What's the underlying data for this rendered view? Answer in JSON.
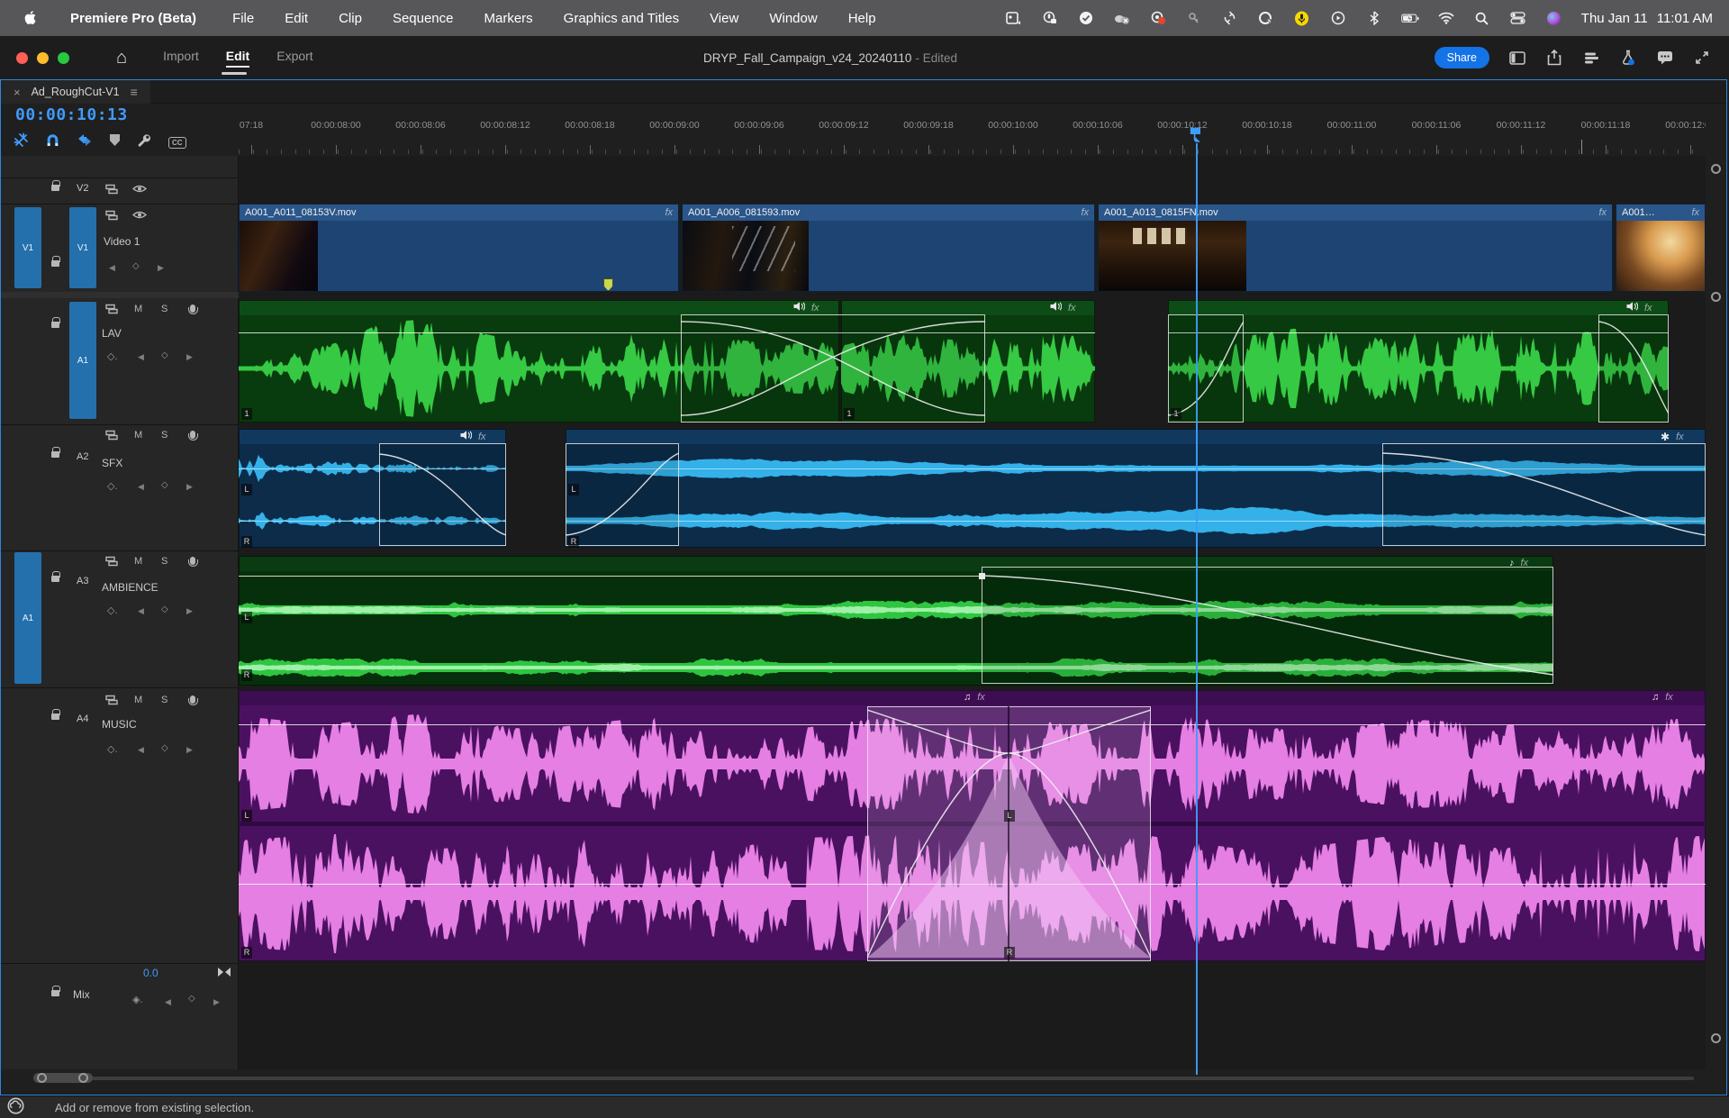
{
  "colors": {
    "accent_blue": "#1473e6",
    "playhead_blue": "#3e9df5",
    "timecode_blue": "#3f9bfa",
    "video_clip": "#1d4473",
    "lav_wave": "#36c944",
    "sfx_wave": "#34b1e8",
    "ambience_wave": "#2fc541",
    "ambience_core": "#9ff0a8",
    "music_wave": "#e57fe3",
    "traffic_red": "#ff5f57",
    "traffic_yellow": "#febc2e",
    "traffic_green": "#28c840"
  },
  "icons": {
    "close": "×",
    "panel_menu": "≡",
    "home": "⌂",
    "music_note": "♫",
    "note": "♪",
    "kf_diamond": "◇",
    "kf_prev": "◀",
    "kf_next": "▶",
    "render_star": "✱",
    "cc_badge": "CC"
  },
  "menubar": {
    "app_name": "Premiere Pro (Beta)",
    "items": [
      "File",
      "Edit",
      "Clip",
      "Sequence",
      "Markers",
      "Graphics and Titles",
      "View",
      "Window",
      "Help"
    ],
    "clock_date": "Thu Jan 11",
    "clock_time": "11:01 AM"
  },
  "titlebar": {
    "tabs": [
      "Import",
      "Edit",
      "Export"
    ],
    "active_tab_index": 1,
    "project_title": "DRYP_Fall_Campaign_v24_20240110",
    "status_suffix": "- Edited",
    "share_label": "Share"
  },
  "timeline": {
    "tab_label": "Ad_RoughCut-V1",
    "playhead_timecode": "00:00:10:13",
    "ruler_labels": [
      "07:18",
      "00:00:08:00",
      "00:00:08:06",
      "00:00:08:12",
      "00:00:08:18",
      "00:00:09:00",
      "00:00:09:06",
      "00:00:09:12",
      "00:00:09:18",
      "00:00:10:00",
      "00:00:10:06",
      "00:00:10:12",
      "00:00:10:18",
      "00:00:11:00",
      "00:00:11:06",
      "00:00:11:12",
      "00:00:11:18",
      "00:00:12:00"
    ],
    "track_controls": {
      "mute": "M",
      "solo": "S"
    },
    "tracks": {
      "v2": {
        "id": "V2"
      },
      "v1": {
        "id": "V1",
        "source": "V1",
        "name": "Video 1"
      },
      "a1": {
        "id": "A1",
        "name": "LAV"
      },
      "a2": {
        "id": "A2",
        "name": "SFX"
      },
      "a3": {
        "id": "A3",
        "source": "A1",
        "name": "AMBIENCE"
      },
      "a4": {
        "id": "A4",
        "name": "MUSIC"
      },
      "mix": {
        "name": "Mix",
        "level": "0.0"
      }
    },
    "video_clips": [
      "A001_A011_08153V.mov",
      "A001_A006_081593.mov",
      "A001_A013_0815FN.mov",
      "A001…"
    ],
    "fx_label": "fx",
    "badges": {
      "left": "L",
      "right": "R",
      "lav_channel": "1"
    }
  },
  "statusbar": {
    "message": "Add or remove from existing selection."
  }
}
